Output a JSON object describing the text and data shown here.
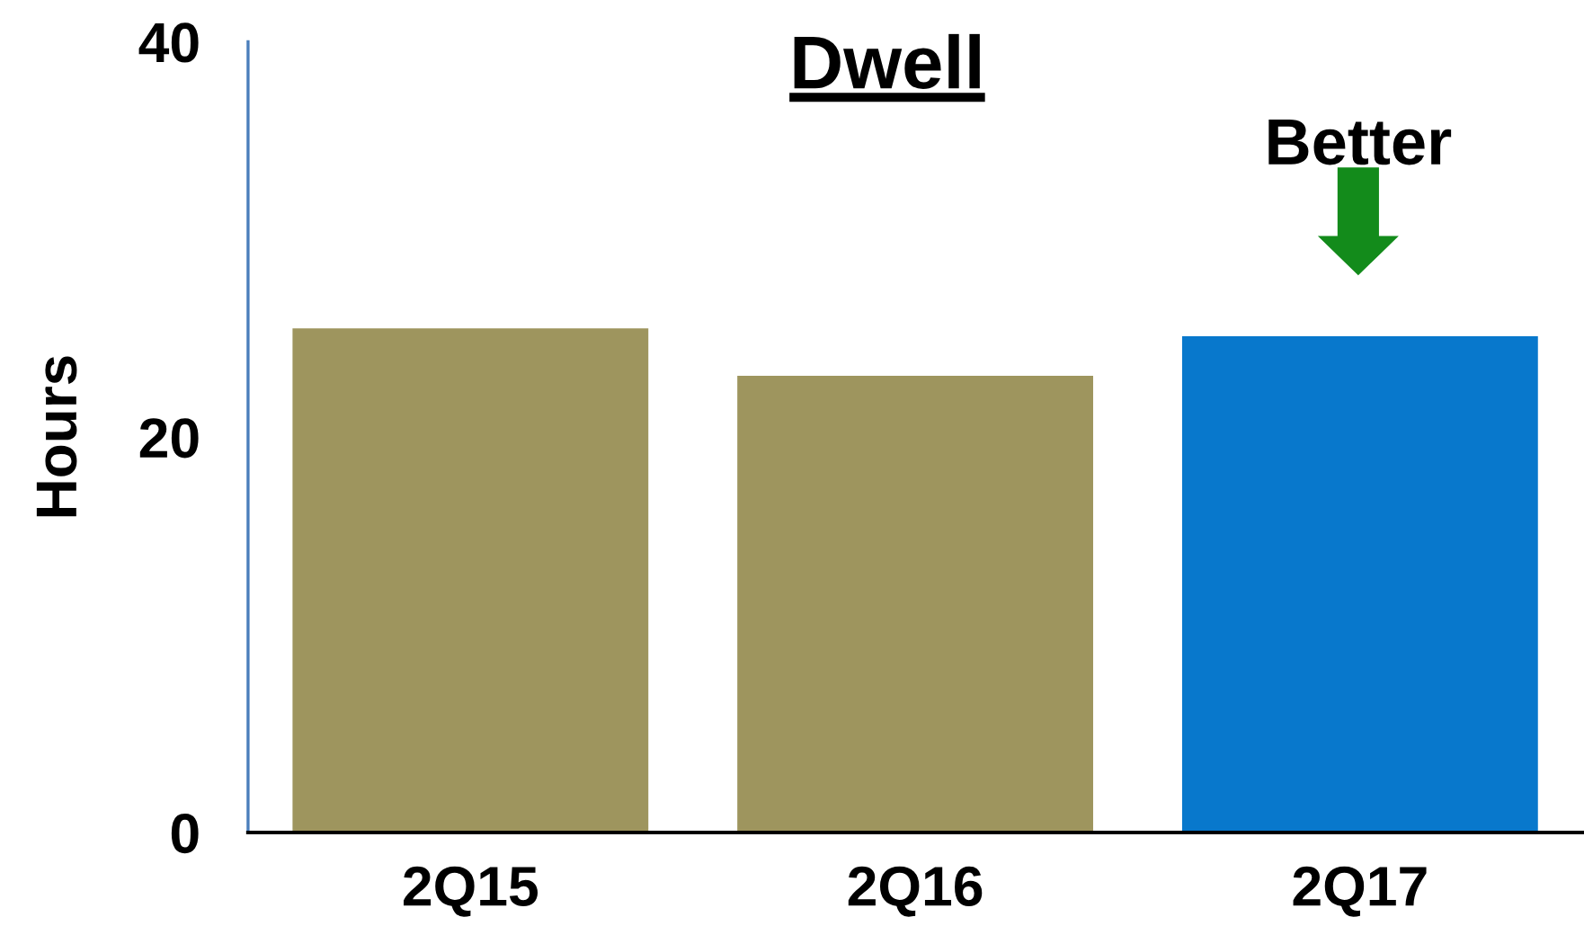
{
  "chart_data": {
    "type": "bar",
    "title": "Dwell",
    "ylabel": "Hours",
    "categories": [
      "2Q15",
      "2Q16",
      "2Q17"
    ],
    "values": [
      25.5,
      23.1,
      25.1
    ],
    "colors": [
      "#9e955e",
      "#9e955e",
      "#0878cc"
    ],
    "ylim": [
      0,
      40
    ],
    "yticks": [
      0,
      20,
      40
    ],
    "annotations": [
      "Better"
    ]
  }
}
